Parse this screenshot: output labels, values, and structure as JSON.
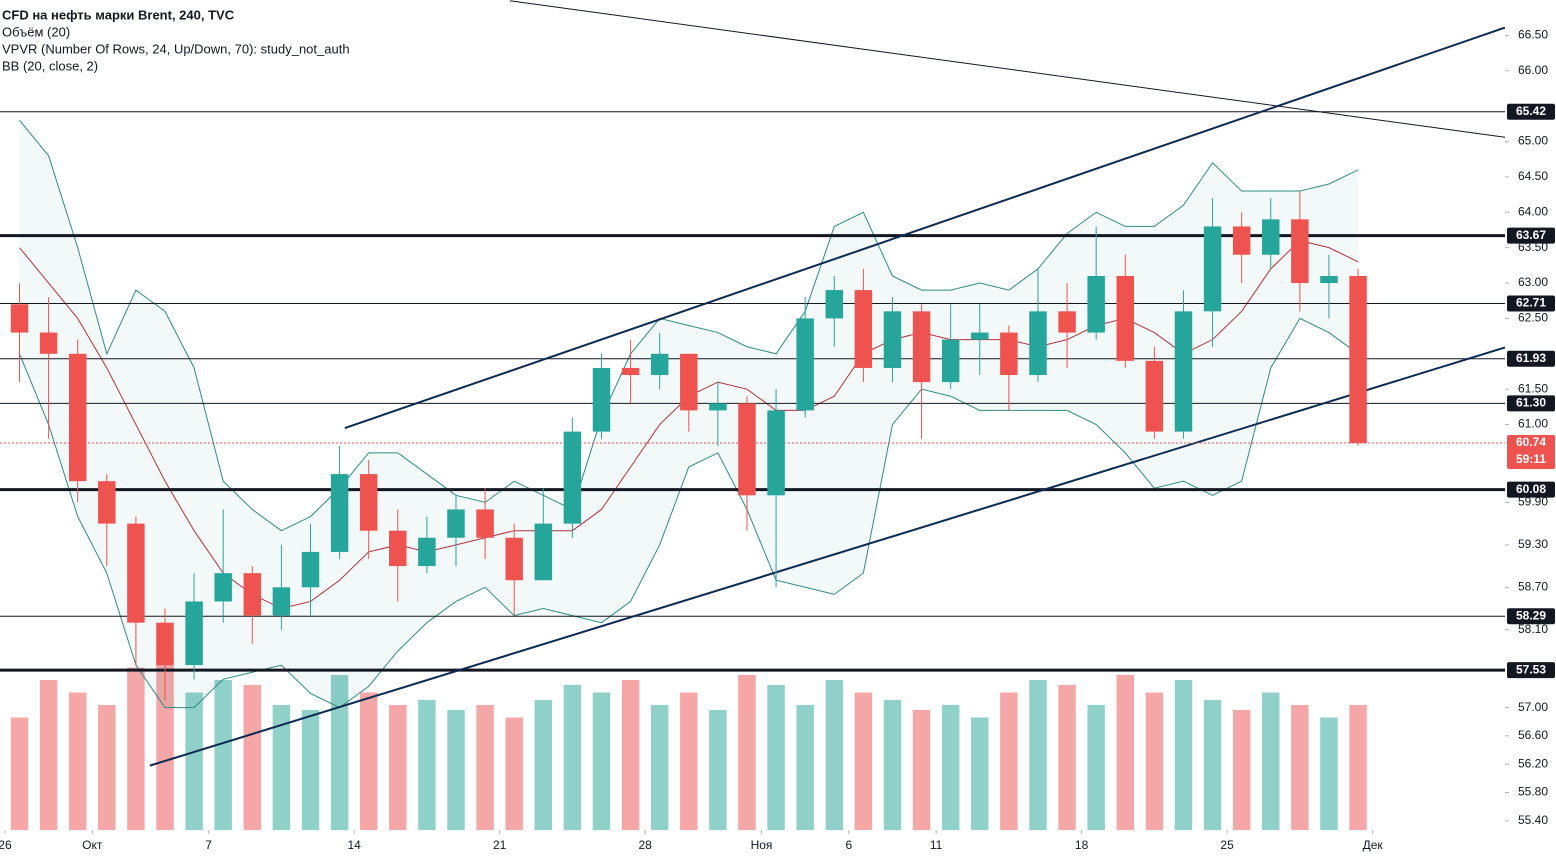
{
  "chart_data": {
    "type": "candlestick",
    "legend_lines": [
      "CFD на нефть марки Brent, 240, TVC",
      "Объём (20)",
      "VPVR (Number Of Rows, 24, Up/Down, 70): study_not_auth",
      "BB (20, close, 2)"
    ],
    "xlim": [
      -0.17,
      51.55
    ],
    "ylim": [
      55.27,
      67.0
    ],
    "y2lim": [
      0,
      100
    ],
    "xticks": [
      {
        "value": 0,
        "label": "26"
      },
      {
        "value": 3,
        "label": "Окт"
      },
      {
        "value": 7,
        "label": "7"
      },
      {
        "value": 12,
        "label": "14"
      },
      {
        "value": 17,
        "label": "21"
      },
      {
        "value": 22,
        "label": "28"
      },
      {
        "value": 26,
        "label": "Ноя"
      },
      {
        "value": 29,
        "label": "6"
      },
      {
        "value": 32,
        "label": "11"
      },
      {
        "value": 37,
        "label": "18"
      },
      {
        "value": 42,
        "label": "25"
      },
      {
        "value": 47,
        "label": "Дек"
      }
    ],
    "yticks": [
      {
        "value": 55.4,
        "label": "55.40"
      },
      {
        "value": 55.8,
        "label": "55.80"
      },
      {
        "value": 56.2,
        "label": "56.20"
      },
      {
        "value": 56.6,
        "label": "56.60"
      },
      {
        "value": 57.0,
        "label": "57.00"
      },
      {
        "value": 58.1,
        "label": "58.10"
      },
      {
        "value": 58.7,
        "label": "58.70"
      },
      {
        "value": 59.3,
        "label": "59.30"
      },
      {
        "value": 59.9,
        "label": "59.90"
      },
      {
        "value": 61.0,
        "label": "61.00"
      },
      {
        "value": 61.5,
        "label": "61.50"
      },
      {
        "value": 62.5,
        "label": "62.50"
      },
      {
        "value": 63.0,
        "label": "63.00"
      },
      {
        "value": 63.5,
        "label": "63.50"
      },
      {
        "value": 64.0,
        "label": "64.00"
      },
      {
        "value": 64.5,
        "label": "64.50"
      },
      {
        "value": 65.0,
        "label": "65.00"
      },
      {
        "value": 66.0,
        "label": "66.00"
      },
      {
        "value": 66.5,
        "label": "66.50"
      }
    ],
    "up_color": "#26a69a",
    "down_color": "#ef5350",
    "x": [
      0.5,
      1.5,
      2.5,
      3.5,
      4.5,
      5.5,
      6.5,
      7.5,
      8.5,
      9.5,
      10.5,
      11.5,
      12.5,
      13.5,
      14.5,
      15.5,
      16.5,
      17.5,
      18.5,
      19.5,
      20.5,
      21.5,
      22.5,
      23.5,
      24.5,
      25.5,
      26.5,
      27.5,
      28.5,
      29.5,
      30.5,
      31.5,
      32.5,
      33.5,
      34.5,
      35.5,
      36.5,
      37.5,
      38.5,
      39.5,
      40.5,
      41.5,
      42.5,
      43.5,
      44.5,
      45.5,
      46.5
    ],
    "open": [
      62.7,
      62.3,
      62.0,
      60.2,
      59.6,
      58.2,
      57.6,
      58.5,
      58.9,
      58.3,
      58.7,
      59.2,
      60.3,
      59.5,
      59.0,
      59.4,
      59.8,
      59.4,
      58.8,
      59.6,
      60.9,
      61.8,
      61.7,
      62.0,
      61.2,
      61.3,
      60.0,
      61.2,
      62.5,
      62.9,
      61.8,
      62.6,
      61.6,
      62.2,
      62.3,
      61.7,
      62.6,
      62.3,
      63.1,
      61.9,
      60.9,
      62.6,
      63.8,
      63.4,
      63.9,
      63.0,
      63.1
    ],
    "high": [
      63.0,
      62.8,
      62.2,
      60.3,
      59.7,
      58.4,
      58.9,
      59.8,
      59.0,
      59.3,
      59.6,
      60.7,
      60.5,
      59.8,
      59.7,
      60.0,
      60.1,
      59.6,
      60.1,
      61.1,
      62.0,
      62.2,
      62.3,
      62.0,
      61.6,
      61.4,
      61.5,
      62.8,
      63.1,
      63.2,
      62.8,
      62.7,
      62.7,
      62.7,
      62.4,
      63.2,
      63.0,
      63.8,
      63.4,
      62.1,
      62.9,
      64.2,
      64.0,
      64.2,
      64.3,
      63.4,
      63.2
    ],
    "low": [
      61.6,
      60.8,
      59.9,
      59.0,
      57.6,
      57.1,
      57.4,
      58.2,
      57.9,
      58.1,
      58.3,
      59.1,
      59.1,
      58.5,
      58.9,
      59.0,
      59.1,
      58.3,
      58.8,
      59.4,
      60.8,
      61.3,
      61.5,
      60.9,
      60.7,
      59.5,
      58.7,
      61.1,
      62.1,
      61.6,
      61.6,
      60.8,
      61.5,
      61.7,
      61.2,
      61.6,
      61.8,
      62.2,
      61.8,
      60.8,
      60.8,
      62.1,
      63.0,
      63.2,
      62.6,
      62.5,
      60.7
    ],
    "close": [
      62.3,
      62.0,
      60.2,
      59.6,
      58.2,
      57.6,
      58.5,
      58.9,
      58.3,
      58.7,
      59.2,
      60.3,
      59.5,
      59.0,
      59.4,
      59.8,
      59.4,
      58.8,
      59.6,
      60.9,
      61.8,
      61.7,
      62.0,
      61.2,
      61.3,
      60.0,
      61.2,
      62.5,
      62.9,
      61.8,
      62.6,
      61.6,
      62.2,
      62.3,
      61.7,
      62.6,
      62.3,
      63.1,
      61.9,
      60.9,
      62.6,
      63.8,
      63.4,
      63.9,
      63.0,
      63.1,
      60.74
    ],
    "volume": [
      45,
      60,
      55,
      50,
      65,
      70,
      55,
      60,
      58,
      50,
      48,
      62,
      55,
      50,
      52,
      48,
      50,
      45,
      52,
      58,
      55,
      60,
      50,
      55,
      48,
      62,
      58,
      50,
      60,
      55,
      52,
      48,
      50,
      45,
      55,
      60,
      58,
      50,
      62,
      55,
      60,
      52,
      48,
      55,
      50,
      45,
      50
    ],
    "volume_colors": [
      "#8fd1c9",
      "#f4a7a6"
    ],
    "bb_upper": [
      65.3,
      64.8,
      63.5,
      62.0,
      62.9,
      62.6,
      61.8,
      60.2,
      59.8,
      59.5,
      59.7,
      60.1,
      60.6,
      60.6,
      60.3,
      60.0,
      59.9,
      60.2,
      60.0,
      59.8,
      61.1,
      62.0,
      62.5,
      62.4,
      62.3,
      62.1,
      62.0,
      62.6,
      63.8,
      64.0,
      63.1,
      62.9,
      62.9,
      63.0,
      62.9,
      63.2,
      63.7,
      64.0,
      63.8,
      63.8,
      64.1,
      64.7,
      64.3,
      64.3,
      64.3,
      64.4,
      64.6
    ],
    "bb_middle": [
      63.5,
      63.0,
      62.5,
      61.8,
      61.0,
      60.2,
      59.5,
      58.9,
      58.6,
      58.4,
      58.5,
      58.8,
      59.2,
      59.3,
      59.2,
      59.3,
      59.4,
      59.5,
      59.5,
      59.5,
      59.8,
      60.4,
      61.0,
      61.4,
      61.6,
      61.5,
      61.2,
      61.2,
      61.4,
      62.0,
      62.2,
      62.3,
      62.2,
      62.2,
      62.2,
      62.1,
      62.2,
      62.4,
      62.5,
      62.3,
      62.0,
      62.2,
      62.6,
      63.2,
      63.6,
      63.5,
      63.3
    ],
    "bb_lower": [
      62.0,
      61.0,
      59.7,
      58.9,
      57.6,
      57.0,
      57.0,
      57.4,
      57.5,
      57.6,
      57.2,
      57.0,
      57.3,
      57.8,
      58.2,
      58.5,
      58.7,
      58.3,
      58.4,
      58.3,
      58.2,
      58.5,
      59.3,
      60.4,
      60.6,
      59.8,
      58.8,
      58.7,
      58.6,
      58.9,
      61.0,
      61.5,
      61.4,
      61.2,
      61.2,
      61.2,
      61.2,
      61.0,
      60.6,
      60.1,
      60.2,
      60.0,
      60.2,
      61.8,
      62.5,
      62.3,
      62.0
    ],
    "bb_band_color": "#2e8b84",
    "bb_middle_color": "#b2323c",
    "trend_lines": [
      {
        "x": [
          17.35,
          51.55
        ],
        "y": [
          66.99,
          65.06
        ],
        "color": "#131722"
      },
      {
        "x": [
          11.68,
          51.55
        ],
        "y": [
          60.95,
          66.61
        ],
        "color": "#0d2b52"
      },
      {
        "x": [
          4.98,
          51.55
        ],
        "y": [
          56.18,
          62.09
        ],
        "color": "#0d2b52"
      }
    ],
    "levels": [
      {
        "value": 65.42,
        "bold": false
      },
      {
        "value": 63.67,
        "bold": true
      },
      {
        "value": 62.71,
        "bold": false
      },
      {
        "value": 61.93,
        "bold": false
      },
      {
        "value": {
          "value": 61.3,
          "label": "61.30"
        },
        "bold": false
      },
      {
        "value": 60.08,
        "bold": true
      },
      {
        "value": 58.29,
        "bold": false
      },
      {
        "value": 57.53,
        "bold": true
      }
    ],
    "current_price": 60.74,
    "current_color": "#ef5350",
    "countdown": "59:11"
  }
}
